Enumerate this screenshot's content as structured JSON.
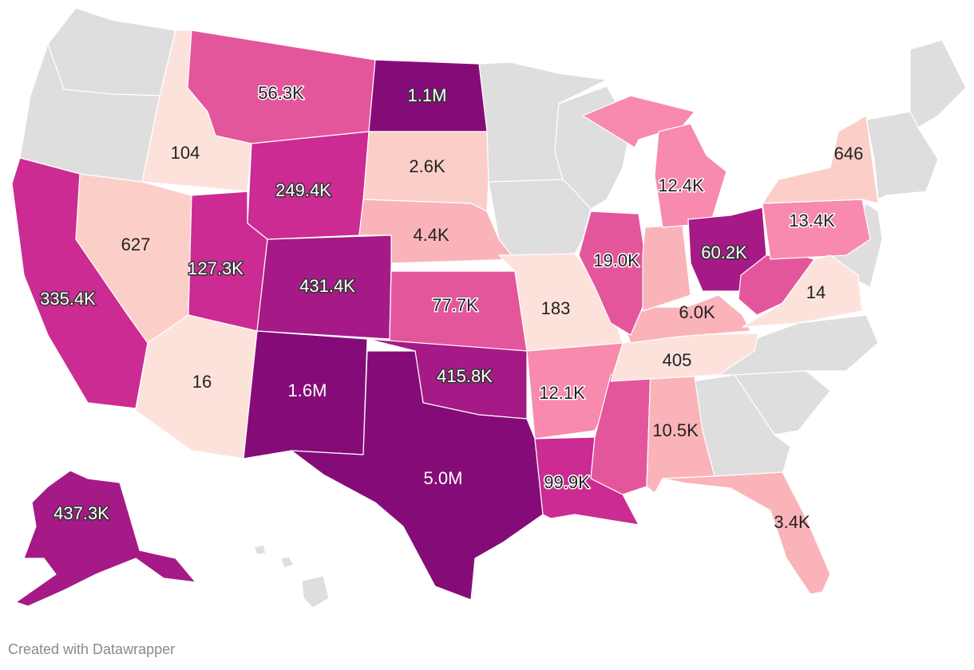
{
  "credit": "Created with Datawrapper",
  "colors": {
    "no_data": "#dedede",
    "scale": [
      "#fde2dc",
      "#fbcfc8",
      "#fab4b9",
      "#f88aae",
      "#e4569c",
      "#cb2b92",
      "#a51a86",
      "#850c78"
    ]
  },
  "map_data": {
    "type": "choropleth",
    "region": "United States",
    "states": [
      {
        "code": "ID",
        "label": "104"
      },
      {
        "code": "MT",
        "label": "56.3K"
      },
      {
        "code": "ND",
        "label": "1.1M"
      },
      {
        "code": "WY",
        "label": "249.4K"
      },
      {
        "code": "SD",
        "label": "2.6K"
      },
      {
        "code": "NV",
        "label": "627"
      },
      {
        "code": "UT",
        "label": "127.3K"
      },
      {
        "code": "CO",
        "label": "431.4K"
      },
      {
        "code": "NE",
        "label": "4.4K"
      },
      {
        "code": "CA",
        "label": "335.4K"
      },
      {
        "code": "AZ",
        "label": "16"
      },
      {
        "code": "NM",
        "label": "1.6M"
      },
      {
        "code": "KS",
        "label": "77.7K"
      },
      {
        "code": "OK",
        "label": "415.8K"
      },
      {
        "code": "TX",
        "label": "5.0M"
      },
      {
        "code": "MO",
        "label": "183"
      },
      {
        "code": "AR",
        "label": "12.1K"
      },
      {
        "code": "LA",
        "label": "99.9K"
      },
      {
        "code": "MS",
        "label": ""
      },
      {
        "code": "AL",
        "label": "10.5K"
      },
      {
        "code": "TN",
        "label": "405"
      },
      {
        "code": "KY",
        "label": "6.0K"
      },
      {
        "code": "IL",
        "label": "19.0K"
      },
      {
        "code": "IN",
        "label": ""
      },
      {
        "code": "MI",
        "label": "12.4K"
      },
      {
        "code": "OH",
        "label": "60.2K"
      },
      {
        "code": "WV",
        "label": ""
      },
      {
        "code": "PA",
        "label": "13.4K"
      },
      {
        "code": "NY",
        "label": "646"
      },
      {
        "code": "VA",
        "label": "14"
      },
      {
        "code": "FL",
        "label": "3.4K"
      },
      {
        "code": "AK",
        "label": "437.3K"
      }
    ]
  }
}
